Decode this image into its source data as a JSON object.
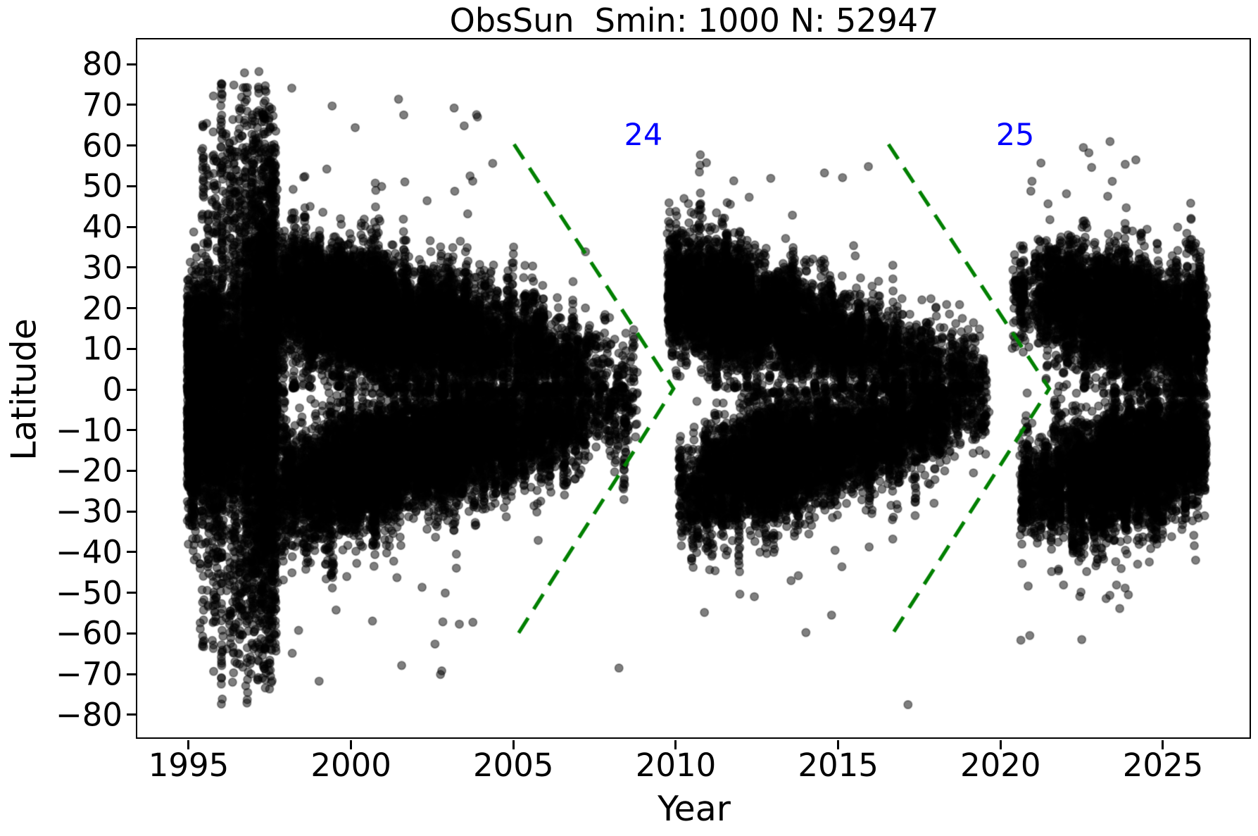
{
  "title": "ObsSun  Smin: 1000 N: 52947",
  "chart_data": {
    "type": "scatter",
    "title": "ObsSun  Smin: 1000 N: 52947",
    "xlabel": "Year",
    "ylabel": "Latitude",
    "xlim": [
      1993.44,
      2027.71
    ],
    "ylim": [
      -85.9,
      85.9
    ],
    "grid": false,
    "x_ticks": [
      {
        "value": 1995,
        "label": "1995"
      },
      {
        "value": 2000,
        "label": "2000"
      },
      {
        "value": 2005,
        "label": "2005"
      },
      {
        "value": 2010,
        "label": "2010"
      },
      {
        "value": 2015,
        "label": "2015"
      },
      {
        "value": 2020,
        "label": "2020"
      },
      {
        "value": 2025,
        "label": "2025"
      }
    ],
    "y_ticks": [
      {
        "value": 80,
        "label": "80"
      },
      {
        "value": 70,
        "label": "70"
      },
      {
        "value": 60,
        "label": "60"
      },
      {
        "value": 50,
        "label": "50"
      },
      {
        "value": 40,
        "label": "40"
      },
      {
        "value": 30,
        "label": "30"
      },
      {
        "value": 20,
        "label": "20"
      },
      {
        "value": 10,
        "label": "10"
      },
      {
        "value": 0,
        "label": "0"
      },
      {
        "value": -10,
        "label": "−10"
      },
      {
        "value": -20,
        "label": "−20"
      },
      {
        "value": -30,
        "label": "−30"
      },
      {
        "value": -40,
        "label": "−40"
      },
      {
        "value": -50,
        "label": "−50"
      },
      {
        "value": -60,
        "label": "−60"
      },
      {
        "value": -70,
        "label": "−70"
      },
      {
        "value": -80,
        "label": "−80"
      }
    ],
    "marker": {
      "radius_px": 5.7,
      "fill": "rgba(0,0,0,0.50)",
      "edge": "rgba(0,0,0,0.38)",
      "edge_width": 1.7
    },
    "reported_point_count": 52947,
    "smin": 1000,
    "cycle_markers": [
      {
        "label": "24",
        "label_color": "#0000ff",
        "line_color": "#008000",
        "line_width": 5.2,
        "dash": [
          25,
          15
        ],
        "vertices": [
          [
            2005.02,
            60.3
          ],
          [
            2009.93,
            0.2
          ],
          [
            2005.15,
            -60.0
          ]
        ],
        "label_year": 2009.0,
        "label_lat": 62.5
      },
      {
        "label": "25",
        "label_color": "#0000ff",
        "line_color": "#008000",
        "line_width": 5.2,
        "dash": [
          25,
          15
        ],
        "vertices": [
          [
            2016.55,
            60.3
          ],
          [
            2021.5,
            0.2
          ],
          [
            2016.68,
            -60.0
          ]
        ],
        "label_year": 2020.45,
        "label_lat": 62.5
      }
    ],
    "point_cloud": {
      "seed": 42,
      "t_min": 1994.95,
      "t_max": 2026.35,
      "components": [
        {
          "id": "cycle22-tail-north",
          "kind": "wing",
          "hemisphere": 1,
          "t0": 1994.95,
          "t1": 1997.95,
          "peak": 1995.2,
          "rise": 0.7,
          "fall": 1.15,
          "lat_start": 10.5,
          "lat_end": 6.5,
          "spread_start": 5.5,
          "spread_end": 3.5,
          "drift_pow": 1.0,
          "n_points": 2300,
          "halo_frac": 0,
          "halo_lat": [
            45,
            70
          ]
        },
        {
          "id": "cycle22-tail-south",
          "kind": "wing",
          "hemisphere": -1,
          "t0": 1994.95,
          "t1": 1997.95,
          "peak": 1995.25,
          "rise": 0.75,
          "fall": 1.2,
          "lat_start": 13.5,
          "lat_end": 8.0,
          "spread_start": 7.0,
          "spread_end": 4.5,
          "drift_pow": 1.0,
          "n_points": 2600,
          "halo_frac": 0,
          "halo_lat": [
            45,
            70
          ]
        },
        {
          "id": "early-noise-bursts",
          "kind": "bursts",
          "t0": 1994.98,
          "t1": 1998.12,
          "hot_range": [
            1996.25,
            1997.75
          ],
          "hot_weight": 0.62,
          "points_min": 8,
          "points_max": 80,
          "lat_max_min": 38,
          "lat_max_max": 79,
          "n_points": 3400
        },
        {
          "id": "cycle23-north",
          "kind": "wing",
          "hemisphere": 1,
          "t0": 1996.7,
          "t1": 2008.85,
          "peak": 2001.0,
          "rise": 2.3,
          "fall": 3.3,
          "lat_start": 26.5,
          "lat_end": 3.8,
          "spread_start": 7.2,
          "spread_end": 4.3,
          "drift_pow": 0.85,
          "n_points": 9800,
          "halo_frac": 0.002,
          "halo_lat": [
            46,
            76
          ]
        },
        {
          "id": "cycle23-south",
          "kind": "wing",
          "hemisphere": -1,
          "t0": 1996.75,
          "t1": 2008.9,
          "peak": 2001.6,
          "rise": 2.3,
          "fall": 3.2,
          "lat_start": 27.0,
          "lat_end": 4.0,
          "spread_start": 7.4,
          "spread_end": 4.2,
          "drift_pow": 0.85,
          "n_points": 9800,
          "halo_frac": 0.002,
          "halo_lat": [
            46,
            72
          ]
        },
        {
          "id": "cycle24-north",
          "kind": "wing",
          "hemisphere": 1,
          "t0": 2009.75,
          "t1": 2019.6,
          "peak": 2012.0,
          "rise": 1.7,
          "fall": 3.6,
          "lat_start": 25.5,
          "lat_end": 3.5,
          "spread_start": 6.3,
          "spread_end": 3.4,
          "drift_pow": 0.85,
          "n_points": 7300,
          "halo_frac": 0.0009,
          "halo_lat": [
            42,
            60
          ]
        },
        {
          "id": "cycle24-south",
          "kind": "wing",
          "hemisphere": -1,
          "t0": 2010.1,
          "t1": 2019.7,
          "peak": 2013.7,
          "rise": 1.9,
          "fall": 3.2,
          "lat_start": 25.5,
          "lat_end": 3.5,
          "spread_start": 6.4,
          "spread_end": 3.4,
          "drift_pow": 0.85,
          "n_points": 7300,
          "halo_frac": 0.0009,
          "halo_lat": [
            42,
            60
          ]
        },
        {
          "id": "cycle25-north",
          "kind": "wing",
          "hemisphere": 1,
          "t0": 2020.35,
          "t1": 2026.34,
          "peak": 2024.6,
          "rise": 2.1,
          "fall": 3.3,
          "lat_start": 25.0,
          "lat_end": 13.5,
          "spread_start": 5.8,
          "spread_end": 6.2,
          "drift_pow": 1.0,
          "n_points": 6050,
          "halo_frac": 0.0015,
          "halo_lat": [
            45,
            62
          ]
        },
        {
          "id": "cycle25-south",
          "kind": "wing",
          "hemisphere": -1,
          "t0": 2020.55,
          "t1": 2026.34,
          "peak": 2024.8,
          "rise": 2.1,
          "fall": 3.3,
          "lat_start": 25.5,
          "lat_end": 13.5,
          "spread_start": 5.8,
          "spread_end": 6.4,
          "drift_pow": 1.0,
          "n_points": 6050,
          "halo_frac": 0.0015,
          "halo_lat": [
            45,
            62
          ]
        }
      ],
      "explicit_outliers": [
        [
          2022.55,
          59.5
        ],
        [
          2022.72,
          58.2
        ],
        [
          2023.3,
          47.5
        ],
        [
          2017.15,
          -77.5
        ],
        [
          2008.25,
          -68.5
        ],
        [
          2020.9,
          -60.5
        ],
        [
          2013.55,
          -47.0
        ],
        [
          2010.7,
          44.0
        ],
        [
          2010.82,
          42.2
        ],
        [
          2022.5,
          -61.5
        ]
      ]
    }
  }
}
